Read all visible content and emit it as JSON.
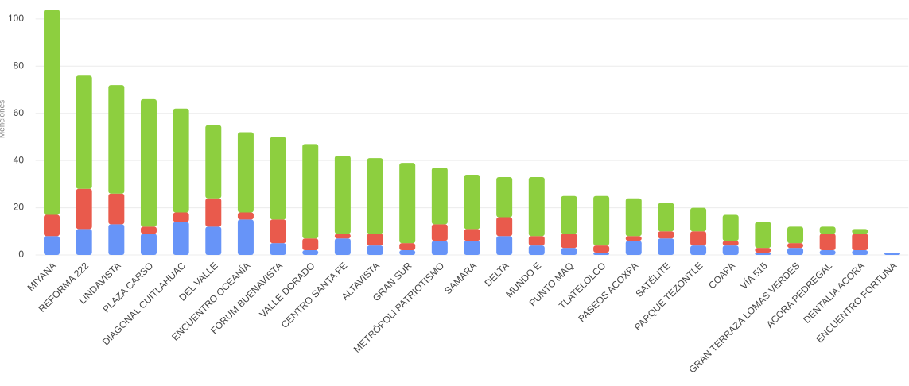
{
  "chart_data": {
    "type": "stacked_bar",
    "y_label": "Menciones",
    "categories": [
      "MIYANA",
      "REFORMA 222",
      "LINDAVISTA",
      "PLAZA CARSO",
      "DIAGONAL CUITLAHUAC",
      "DEL VALLE",
      "ENCUENTRO OCEANÍA",
      "FORUM BUENAVISTA",
      "VALLE DORADO",
      "CENTRO SANTA FE",
      "ALTAVISTA",
      "GRAN SUR",
      "METRÓPOLI PATRIOTISMO",
      "SAMARA",
      "DELTA",
      "MUNDO E",
      "PUNTO MAQ",
      "TLATELOLCO",
      "PASEOS ACOXPA",
      "SATÉLITE",
      "PARQUE TEZONTLE",
      "COAPA",
      "VÍA 515",
      "GRAN TERRAZA LOMAS VERDES",
      "ACORA PEDREGAL",
      "DENTALIA ACORA",
      "ENCUENTRO FORTUNA"
    ],
    "series": [
      {
        "color": "#6794f8",
        "values": [
          8,
          11,
          13,
          9,
          14,
          12,
          15,
          5,
          2,
          7,
          4,
          2,
          6,
          6,
          8,
          4,
          3,
          1,
          6,
          7,
          4,
          4,
          1,
          3,
          2,
          2,
          1
        ]
      },
      {
        "color": "#e95a4c",
        "values": [
          9,
          17,
          13,
          3,
          4,
          12,
          3,
          10,
          5,
          2,
          5,
          3,
          7,
          5,
          8,
          4,
          6,
          3,
          2,
          3,
          6,
          2,
          2,
          2,
          7,
          7,
          0
        ]
      },
      {
        "color": "#8dcf3f",
        "values": [
          87,
          48,
          46,
          54,
          44,
          31,
          34,
          35,
          40,
          33,
          32,
          34,
          24,
          23,
          17,
          25,
          16,
          21,
          16,
          12,
          10,
          11,
          11,
          7,
          3,
          2,
          0
        ]
      }
    ],
    "ylim": [
      0,
      104
    ],
    "yticks": [
      0,
      20,
      40,
      60,
      80,
      100
    ],
    "grid": true
  }
}
